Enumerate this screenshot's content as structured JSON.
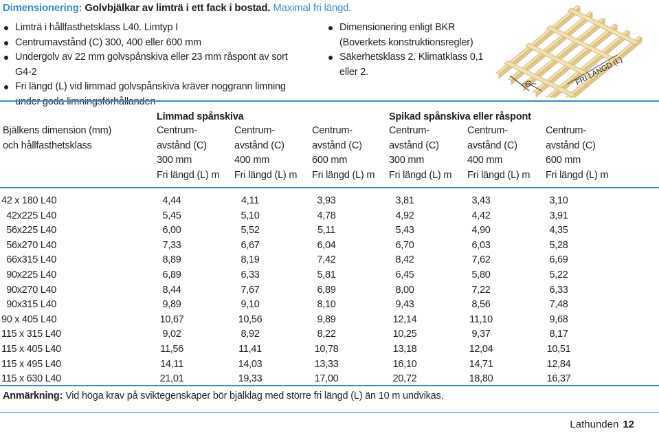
{
  "title": {
    "lead": "Dimensionering:",
    "main": "Golvbjälkar av limträ i ett fack i bostad.",
    "tail": "Maximal fri längd."
  },
  "bullets_left": [
    "Limträ i hållfasthetsklass L40. Limtyp I",
    "Centrumavstånd (C) 300, 400 eller 600 mm",
    "Undergolv av 22 mm golvspånskiva eller 23 mm råspont av sort G4-2",
    "Fri längd (L) vid limmad golvspånskiva kräver noggrann limning under goda limningsförhållanden"
  ],
  "bullets_right": [
    "Dimensionering enligt BKR (Boverkets konstruktionsregler)",
    "Säkerhetsklass 2. Klimatklass 0,1 eller 2."
  ],
  "figure": {
    "label_c": "C",
    "label_l": "FRI LÄNGD (L)"
  },
  "table": {
    "row_header": [
      "Bjälkens dimension (mm)",
      "och hållfasthetsklass"
    ],
    "group1": "Limmad spånskiva",
    "group2": "Spikad spånskiva eller råspont",
    "col_header": [
      [
        "Centrum-",
        "avstånd (C)",
        "300 mm",
        "Fri längd (L) m"
      ],
      [
        "Centrum-",
        "avstånd (C)",
        "400 mm",
        "Fri längd (L) m"
      ],
      [
        "Centrum-",
        "avstånd (C)",
        "600 mm",
        "Fri längd (L) m"
      ],
      [
        "Centrum-",
        "avstånd (C)",
        "300 mm",
        "Fri längd (L) m"
      ],
      [
        "Centrum-",
        "avstånd (C)",
        "400 mm",
        "Fri längd (L) m"
      ],
      [
        "Centrum-",
        "avstånd (C)",
        "600 mm",
        "Fri längd (L) m"
      ]
    ],
    "rows": [
      {
        "label": "42 x 180 L40",
        "values": [
          "4,44",
          "4,11",
          "3,93",
          "3,81",
          "3,43",
          "3,10"
        ]
      },
      {
        "label": "42x225 L40",
        "values": [
          "5,45",
          "5,10",
          "4,78",
          "4,92",
          "4,42",
          "3,91"
        ]
      },
      {
        "label": "56x225 L40",
        "values": [
          "6,00",
          "5,52",
          "5,11",
          "5,43",
          "4,90",
          "4,35"
        ]
      },
      {
        "label": "56x270 L40",
        "values": [
          "7,33",
          "6,67",
          "6,04",
          "6,70",
          "6,03",
          "5,28"
        ]
      },
      {
        "label": "66x315 L40",
        "values": [
          "8,89",
          "8,19",
          "7,42",
          "8,42",
          "7,62",
          "6,69"
        ]
      },
      {
        "label": "90x225 L40",
        "values": [
          "6,89",
          "6,33",
          "5,81",
          "6,45",
          "5,80",
          "5,22"
        ]
      },
      {
        "label": "90x270 L40",
        "values": [
          "8,44",
          "7,67",
          "6,89",
          "8,00",
          "7,22",
          "6,33"
        ]
      },
      {
        "label": "90x315 L40",
        "values": [
          "9,89",
          "9,10",
          "8,10",
          "9,43",
          "8,56",
          "7,48"
        ]
      },
      {
        "label": "90 x 405 L40",
        "values": [
          "10,67",
          "10,56",
          "9,89",
          "12,14",
          "11,10",
          "9,68"
        ]
      },
      {
        "label": "115 x 315 L40",
        "values": [
          "9,02",
          "8,92",
          "8,22",
          "10,25",
          "9,37",
          "8,17"
        ]
      },
      {
        "label": "115 x 405 L40",
        "values": [
          "11,56",
          "11,41",
          "10,78",
          "13,18",
          "12,04",
          "10,51"
        ]
      },
      {
        "label": "115 x 495 L40",
        "values": [
          "14,11",
          "14,03",
          "13,33",
          "16,10",
          "14,71",
          "12,84"
        ]
      },
      {
        "label": "115 x 630 L40",
        "values": [
          "21,01",
          "19,33",
          "17,00",
          "20,72",
          "18,80",
          "16,37"
        ]
      }
    ]
  },
  "note": {
    "label": "Anmärkning:",
    "text": "Vid höga krav på sviktegenskaper bör bjälklag med större fri längd (L) än 10 m undvikas."
  },
  "footer": {
    "book": "Lathunden",
    "page": "12"
  },
  "colors": {
    "accent": "#3a8dc9",
    "wood_light": "#f3e2b0",
    "wood_dark": "#c9a866"
  }
}
